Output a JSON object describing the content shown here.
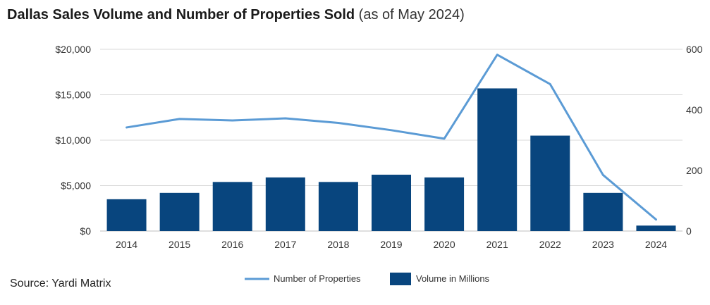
{
  "title": "Dallas Sales Volume and Number of Properties Sold",
  "subtitle": "(as of May 2024)",
  "source": "Source: Yardi Matrix",
  "colors": {
    "bar": "#08457e",
    "line": "#5b9bd5",
    "grid": "#d9d9d9"
  },
  "chart_data": {
    "type": "bar",
    "categories": [
      "2014",
      "2015",
      "2016",
      "2017",
      "2018",
      "2019",
      "2020",
      "2021",
      "2022",
      "2023",
      "2024"
    ],
    "series": [
      {
        "name": "Volume in Millions",
        "type": "bar",
        "axis": "left",
        "values": [
          3500,
          4200,
          5400,
          5900,
          5400,
          6200,
          5900,
          15700,
          10500,
          4200,
          600
        ]
      },
      {
        "name": "Number of Properties",
        "type": "line",
        "axis": "right",
        "values": [
          342,
          370,
          365,
          372,
          357,
          333,
          305,
          582,
          485,
          185,
          38
        ]
      }
    ],
    "y_left": {
      "ylim": [
        0,
        20000
      ],
      "ticks": [
        "$0",
        "$5,000",
        "$10,000",
        "$15,000",
        "$20,000"
      ]
    },
    "y_right": {
      "ylim": [
        0,
        600
      ],
      "ticks": [
        "0",
        "200",
        "400",
        "600"
      ]
    },
    "grid": true,
    "legend": "bottom"
  }
}
